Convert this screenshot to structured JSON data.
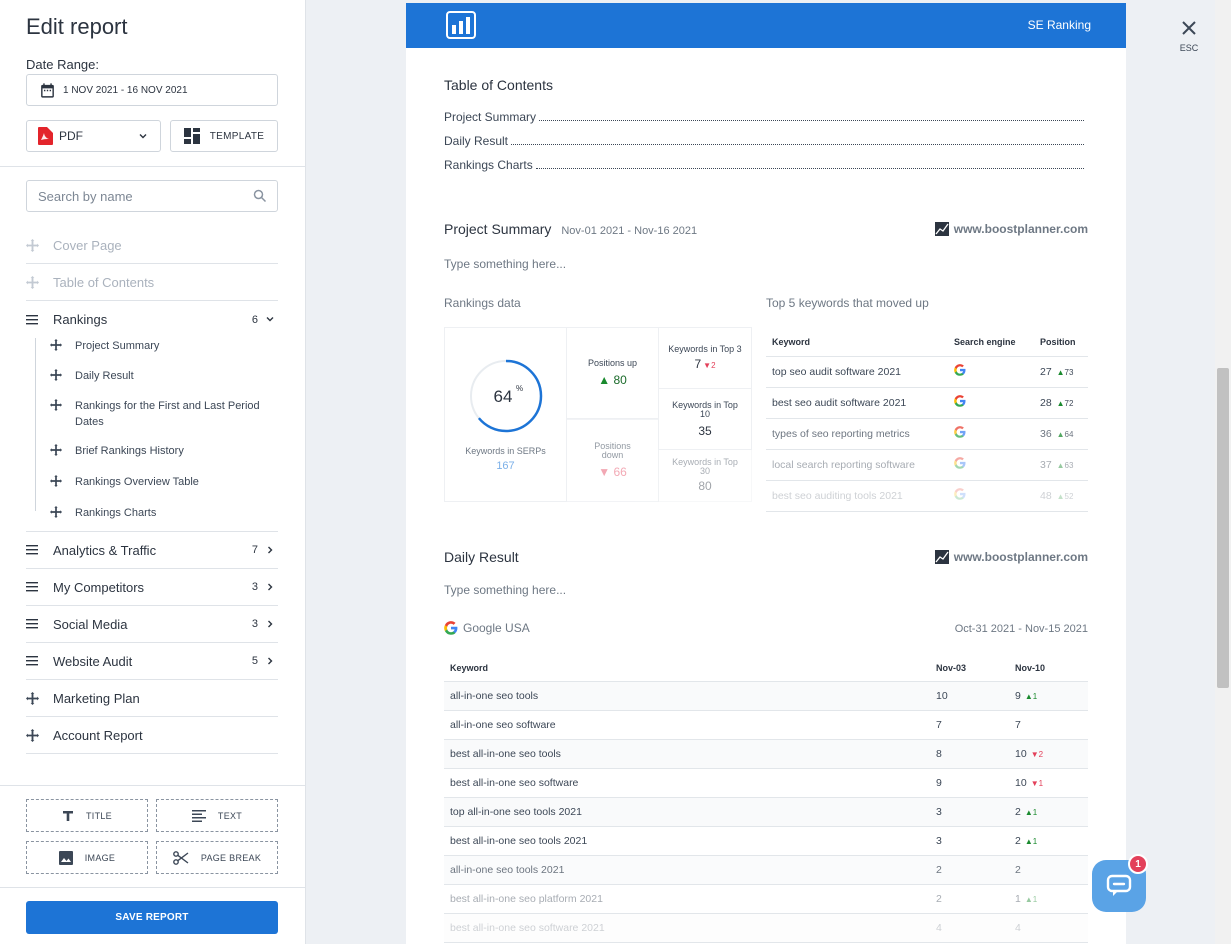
{
  "sidebar": {
    "title": "Edit report",
    "date_label": "Date Range:",
    "date_value": "1 NOV 2021 - 16 NOV 2021",
    "format_value": "PDF",
    "template_label": "TEMPLATE",
    "search_placeholder": "Search by name",
    "nav": {
      "cover": "Cover Page",
      "toc": "Table of Contents",
      "rankings": {
        "label": "Rankings",
        "count": "6"
      },
      "rankings_sub": [
        "Project Summary",
        "Daily Result",
        "Rankings for the First and Last Period Dates",
        "Brief Rankings History",
        "Rankings Overview Table",
        "Rankings Charts"
      ],
      "analytics": {
        "label": "Analytics & Traffic",
        "count": "7"
      },
      "competitors": {
        "label": "My Competitors",
        "count": "3"
      },
      "social": {
        "label": "Social Media",
        "count": "3"
      },
      "audit": {
        "label": "Website Audit",
        "count": "5"
      },
      "marketing": "Marketing Plan",
      "account": "Account Report"
    },
    "tools": {
      "title": "TITLE",
      "text": "TEXT",
      "image": "IMAGE",
      "page_break": "PAGE BREAK"
    },
    "save_label": "SAVE REPORT"
  },
  "report": {
    "brand": "SE Ranking",
    "toc": {
      "title": "Table of Contents",
      "items": [
        "Project Summary",
        "Daily Result",
        "Rankings Charts"
      ]
    },
    "summary": {
      "title": "Project Summary",
      "date": "Nov-01 2021 - Nov-16 2021",
      "site": "www.boostplanner.com",
      "placeholder": "Type something here...",
      "rankings_label": "Rankings data",
      "top5_label": "Top 5 keywords that moved up",
      "serp_percent": "64",
      "serp_percent_sign": "%",
      "serp_fraction": 0.64,
      "serp_label": "Keywords in SERPs",
      "serp_count": "167",
      "pos_up_label": "Positions up",
      "pos_up_value": "80",
      "pos_down_label": "Positions down",
      "pos_down_value": "66",
      "top3_label": "Keywords in Top 3",
      "top3_value": "7",
      "top3_change": "2",
      "top10_label": "Keywords in Top 10",
      "top10_value": "35",
      "top30_label": "Keywords in Top 30",
      "top30_value": "80",
      "top5_headers": {
        "keyword": "Keyword",
        "engine": "Search engine",
        "position": "Position"
      },
      "top5_rows": [
        {
          "keyword": "top seo audit software 2021",
          "position": "27",
          "change": "73"
        },
        {
          "keyword": "best seo audit software 2021",
          "position": "28",
          "change": "72"
        },
        {
          "keyword": "types of seo reporting metrics",
          "position": "36",
          "change": "64"
        },
        {
          "keyword": "local search reporting software",
          "position": "37",
          "change": "63"
        },
        {
          "keyword": "best seo auditing tools 2021",
          "position": "48",
          "change": "52"
        }
      ]
    },
    "daily": {
      "title": "Daily Result",
      "site": "www.boostplanner.com",
      "placeholder": "Type something here...",
      "engine": "Google USA",
      "date": "Oct-31 2021 - Nov-15 2021",
      "headers": {
        "keyword": "Keyword",
        "col1": "Nov-03",
        "col2": "Nov-10"
      },
      "rows": [
        {
          "keyword": "all-in-one seo tools",
          "a": "10",
          "b": "9",
          "change": "1",
          "dir": "up"
        },
        {
          "keyword": "all-in-one seo software",
          "a": "7",
          "b": "7",
          "change": "",
          "dir": ""
        },
        {
          "keyword": "best all-in-one seo tools",
          "a": "8",
          "b": "10",
          "change": "2",
          "dir": "down"
        },
        {
          "keyword": "best all-in-one seo software",
          "a": "9",
          "b": "10",
          "change": "1",
          "dir": "down"
        },
        {
          "keyword": "top all-in-one seo tools 2021",
          "a": "3",
          "b": "2",
          "change": "1",
          "dir": "up"
        },
        {
          "keyword": "best all-in-one seo tools 2021",
          "a": "3",
          "b": "2",
          "change": "1",
          "dir": "up"
        },
        {
          "keyword": "all-in-one seo tools 2021",
          "a": "2",
          "b": "2",
          "change": "",
          "dir": ""
        },
        {
          "keyword": "best all-in-one seo platform 2021",
          "a": "2",
          "b": "1",
          "change": "1",
          "dir": "up"
        },
        {
          "keyword": "best all-in-one seo software 2021",
          "a": "4",
          "b": "4",
          "change": "",
          "dir": ""
        }
      ]
    }
  },
  "overlay": {
    "esc_label": "ESC",
    "chat_badge": "1"
  },
  "colors": {
    "accent": "#1d74d6",
    "up": "#1a8a2e",
    "down": "#e3405a"
  }
}
